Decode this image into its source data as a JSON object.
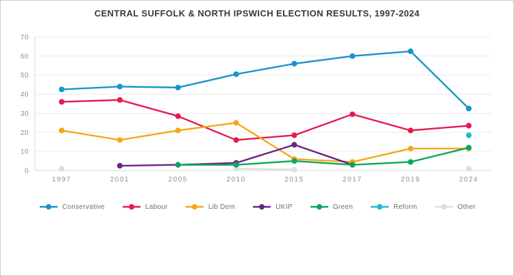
{
  "chart_data": {
    "type": "line",
    "title": "CENTRAL SUFFOLK & NORTH IPSWICH ELECTION RESULTS, 1997-2024",
    "categories": [
      "1997",
      "2001",
      "2005",
      "2010",
      "2015",
      "2017",
      "2019",
      "2024"
    ],
    "series": [
      {
        "name": "Conservative",
        "color": "#1B92D1",
        "values": [
          42.5,
          44,
          43.5,
          50.5,
          56,
          60,
          62.5,
          32.5
        ]
      },
      {
        "name": "Labour",
        "color": "#E41B4D",
        "values": [
          36,
          37,
          28.5,
          16,
          18.5,
          29.5,
          21,
          23.5
        ]
      },
      {
        "name": "Lib Dem",
        "color": "#F7A61B",
        "values": [
          21,
          16,
          21,
          25,
          6,
          4.5,
          11.5,
          11.5
        ]
      },
      {
        "name": "UKIP",
        "color": "#6A2582",
        "values": [
          null,
          2.5,
          3,
          4,
          13.5,
          3,
          null,
          null
        ]
      },
      {
        "name": "Green",
        "color": "#0DA75A",
        "values": [
          null,
          null,
          3,
          3,
          5,
          3,
          4.5,
          12
        ]
      },
      {
        "name": "Reform",
        "color": "#1FB8CF",
        "values": [
          null,
          null,
          null,
          null,
          null,
          null,
          null,
          18.5
        ]
      },
      {
        "name": "Other",
        "color": "#DEDEDE",
        "values": [
          1,
          null,
          null,
          1,
          0.5,
          null,
          null,
          1
        ]
      }
    ],
    "ylim": [
      0,
      70
    ],
    "yticks": [
      0,
      10,
      20,
      30,
      40,
      50,
      60,
      70
    ],
    "xlabel": "",
    "ylabel": "",
    "grid": true,
    "legend_position": "bottom"
  },
  "style": {
    "grid_color": "#eaeaea",
    "axis_color": "#d8d8d8",
    "tick_color": "#8f8f8f"
  }
}
